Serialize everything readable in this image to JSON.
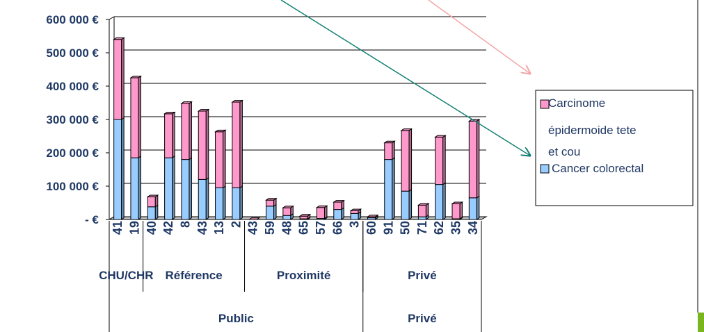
{
  "chart_data": {
    "type": "bar",
    "stacked": true,
    "categories": [
      "41",
      "19",
      "40",
      "42",
      "8",
      "43",
      "13",
      "2",
      "43",
      "59",
      "48",
      "65",
      "57",
      "66",
      "3",
      "60",
      "91",
      "50",
      "71",
      "62",
      "35",
      "34"
    ],
    "groups_level1": [
      {
        "label": "CHU/CHR",
        "start": 0,
        "end": 1
      },
      {
        "label": "Référence",
        "start": 2,
        "end": 7
      },
      {
        "label": "Proximité",
        "start": 8,
        "end": 14
      },
      {
        "label": "Privé",
        "start": 15,
        "end": 21
      }
    ],
    "groups_level2": [
      {
        "label": "Public",
        "start": 0,
        "end": 14
      },
      {
        "label": "Privé",
        "start": 15,
        "end": 21
      }
    ],
    "series": [
      {
        "name": "Cancer colorectal",
        "color": "#99ccff",
        "values": [
          300000,
          185000,
          38000,
          185000,
          180000,
          120000,
          95000,
          95000,
          0,
          40000,
          12000,
          2000,
          3000,
          30000,
          18000,
          5000,
          180000,
          85000,
          8000,
          105000,
          2000,
          65000
        ]
      },
      {
        "name": "Carcinome épidermoide tete et cou",
        "color": "#ff99cc",
        "values": [
          240000,
          240000,
          30000,
          132000,
          168000,
          205000,
          168000,
          257000,
          0,
          18000,
          23000,
          8000,
          33000,
          22000,
          8000,
          3000,
          50000,
          182000,
          35000,
          142000,
          45000,
          230000
        ]
      }
    ],
    "ylim": [
      0,
      600000
    ],
    "yticks": [
      0,
      100000,
      200000,
      300000,
      400000,
      500000,
      600000
    ],
    "ytick_labels": [
      "-   €",
      "100 000 €",
      "200 000 €",
      "300 000 €",
      "400 000 €",
      "500 000 €",
      "600 000 €"
    ],
    "legend_position": "right",
    "grid": true
  }
}
